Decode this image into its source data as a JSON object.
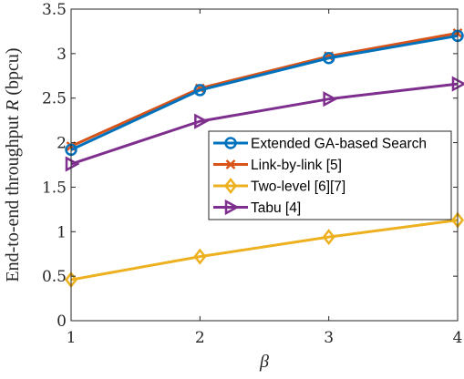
{
  "chart_data": {
    "type": "line",
    "x": [
      1,
      2,
      3,
      4
    ],
    "xlim": [
      1,
      4
    ],
    "ylim": [
      0,
      3.5
    ],
    "xticks": [
      "1",
      "2",
      "3",
      "4"
    ],
    "yticks": [
      "0",
      "0.5",
      "1",
      "1.5",
      "2",
      "2.5",
      "3",
      "3.5"
    ],
    "xlabel": "β",
    "ylabel": "End-to-end throughput R (bpcu)",
    "ylabel_parts": {
      "pre": "End-to-end throughput ",
      "var": "R",
      "post": " (bpcu)"
    },
    "grid": false,
    "legend_position": "center-right",
    "series": [
      {
        "name": "Extended GA-based Search",
        "values": [
          1.92,
          2.59,
          2.95,
          3.2
        ],
        "color": "#0072BD",
        "marker": "circle"
      },
      {
        "name": "Link-by-link [5]",
        "values": [
          1.96,
          2.61,
          2.97,
          3.23
        ],
        "color": "#D95319",
        "marker": "x"
      },
      {
        "name": "Two-level [6][7]",
        "values": [
          0.46,
          0.72,
          0.94,
          1.13
        ],
        "color": "#EDB120",
        "marker": "diamond"
      },
      {
        "name": "Tabu [4]",
        "values": [
          1.76,
          2.24,
          2.49,
          2.66
        ],
        "color": "#7E2F8E",
        "marker": "triangle-right"
      }
    ]
  }
}
